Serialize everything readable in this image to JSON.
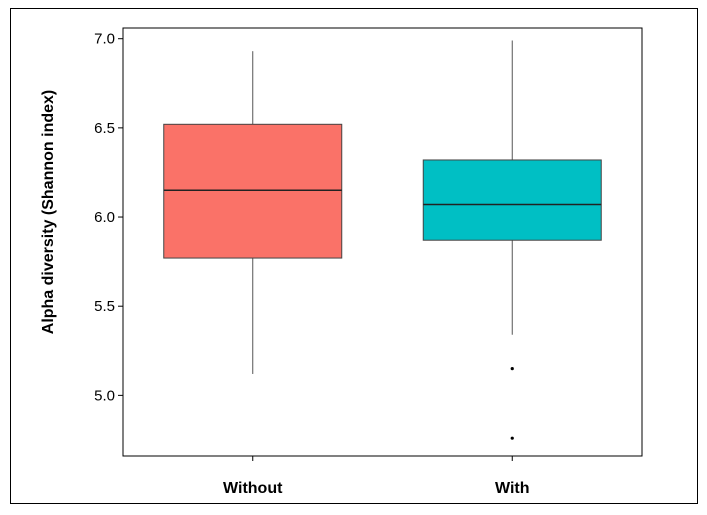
{
  "chart_data": {
    "type": "box",
    "title": "",
    "xlabel": "",
    "ylabel": "Alpha diversity (Shannon index)",
    "ylim": [
      4.66,
      7.06
    ],
    "yticks": [
      "5.0",
      "5.5",
      "6.0",
      "6.5",
      "7.0"
    ],
    "categories": [
      "Without",
      "With"
    ],
    "boxes": [
      {
        "category": "Without",
        "whisker_low": 5.12,
        "q1": 5.77,
        "median": 6.15,
        "q3": 6.52,
        "whisker_high": 6.93,
        "outliers": [],
        "color": "#FA7268"
      },
      {
        "category": "With",
        "whisker_low": 5.34,
        "q1": 5.87,
        "median": 6.07,
        "q3": 6.32,
        "whisker_high": 6.99,
        "outliers": [
          5.15,
          4.76
        ],
        "color": "#00BFC4"
      }
    ],
    "grid": false,
    "legend": "none"
  }
}
